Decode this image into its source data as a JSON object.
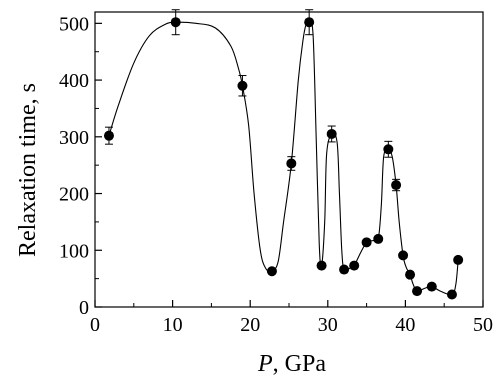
{
  "chart_data": {
    "type": "scatter",
    "xlabel_var": "P",
    "xlabel_unit": ", GPa",
    "ylabel": "Relaxation time, s",
    "xlim": [
      0,
      50
    ],
    "ylim": [
      0,
      520
    ],
    "x_ticks": [
      0,
      10,
      20,
      30,
      40,
      50
    ],
    "y_ticks": [
      0,
      100,
      200,
      300,
      400,
      500
    ],
    "grid": false,
    "series": [
      {
        "marker": "filled-circle",
        "color": "#000000",
        "points": [
          {
            "x": 1.8,
            "y": 302,
            "err": 15
          },
          {
            "x": 10.4,
            "y": 502,
            "err": 22
          },
          {
            "x": 19.0,
            "y": 390,
            "err": 18
          },
          {
            "x": 22.8,
            "y": 63
          },
          {
            "x": 25.3,
            "y": 253,
            "err": 12
          },
          {
            "x": 27.6,
            "y": 502,
            "err": 22
          },
          {
            "x": 29.2,
            "y": 73
          },
          {
            "x": 30.5,
            "y": 305,
            "err": 14
          },
          {
            "x": 32.1,
            "y": 66
          },
          {
            "x": 33.4,
            "y": 73
          },
          {
            "x": 35.0,
            "y": 114
          },
          {
            "x": 36.5,
            "y": 120
          },
          {
            "x": 37.8,
            "y": 278,
            "err": 14
          },
          {
            "x": 38.8,
            "y": 215,
            "err": 10
          },
          {
            "x": 39.7,
            "y": 91
          },
          {
            "x": 40.6,
            "y": 57
          },
          {
            "x": 41.5,
            "y": 28
          },
          {
            "x": 43.4,
            "y": 36
          },
          {
            "x": 46.0,
            "y": 22
          },
          {
            "x": 46.8,
            "y": 83
          }
        ],
        "fit_curve": [
          [
            1.8,
            302
          ],
          [
            3.0,
            355
          ],
          [
            5.0,
            430
          ],
          [
            7.0,
            478
          ],
          [
            9.0,
            498
          ],
          [
            10.4,
            502
          ],
          [
            13.0,
            500
          ],
          [
            15.5,
            492
          ],
          [
            17.5,
            460
          ],
          [
            18.5,
            420
          ],
          [
            19.0,
            390
          ],
          [
            19.8,
            320
          ],
          [
            20.5,
            200
          ],
          [
            21.3,
            100
          ],
          [
            22.0,
            68
          ],
          [
            22.8,
            63
          ],
          [
            23.6,
            80
          ],
          [
            24.3,
            150
          ],
          [
            25.3,
            253
          ],
          [
            26.2,
            400
          ],
          [
            26.8,
            470
          ],
          [
            27.2,
            498
          ],
          [
            27.6,
            502
          ],
          [
            28.1,
            480
          ],
          [
            28.5,
            300
          ],
          [
            28.9,
            110
          ],
          [
            29.2,
            73
          ],
          [
            29.6,
            150
          ],
          [
            29.85,
            270
          ],
          [
            30.5,
            305
          ],
          [
            31.2,
            290
          ],
          [
            31.5,
            200
          ],
          [
            31.8,
            100
          ],
          [
            32.1,
            66
          ],
          [
            32.8,
            68
          ],
          [
            33.4,
            73
          ],
          [
            34.2,
            95
          ],
          [
            35.0,
            114
          ],
          [
            35.8,
            117
          ],
          [
            36.5,
            120
          ],
          [
            36.9,
            180
          ],
          [
            37.2,
            265
          ],
          [
            37.8,
            278
          ],
          [
            38.3,
            265
          ],
          [
            38.8,
            215
          ],
          [
            39.2,
            150
          ],
          [
            39.7,
            91
          ],
          [
            40.1,
            70
          ],
          [
            40.6,
            57
          ],
          [
            41.0,
            40
          ],
          [
            41.5,
            28
          ],
          [
            42.5,
            33
          ],
          [
            43.4,
            36
          ],
          [
            44.5,
            28
          ],
          [
            46.0,
            22
          ],
          [
            46.5,
            40
          ],
          [
            46.8,
            83
          ]
        ]
      }
    ]
  }
}
